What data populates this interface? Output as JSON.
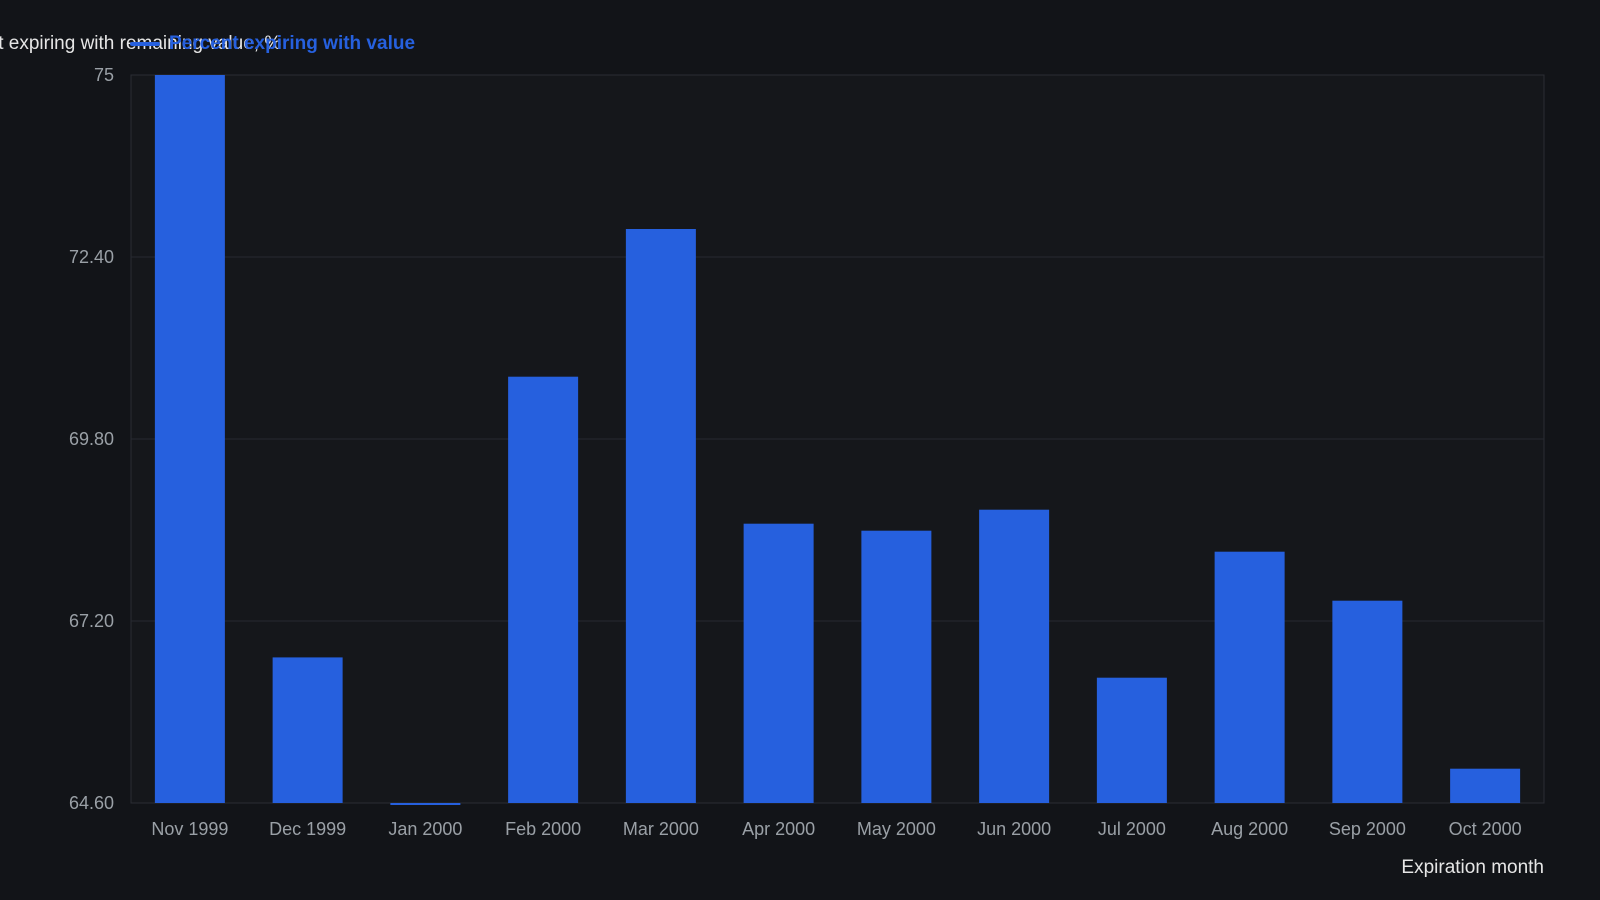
{
  "chart_data": {
    "type": "bar",
    "ylabel": "Percent expiring with remaining value, %",
    "xlabel": "Expiration month",
    "ylim": [
      64.6,
      75
    ],
    "yticks": [
      "64.60",
      "67.20",
      "69.80",
      "72.40",
      "75"
    ],
    "grid": true,
    "legend_position": "top-left",
    "categories": [
      "Nov 1999",
      "Dec 1999",
      "Jan 2000",
      "Feb 2000",
      "Mar 2000",
      "Apr 2000",
      "May 2000",
      "Jun 2000",
      "Jul 2000",
      "Aug 2000",
      "Sep 2000",
      "Oct 2000"
    ],
    "series": [
      {
        "name": "Percent expiring with value",
        "color": "#2660de",
        "values": [
          75.0,
          66.68,
          64.57,
          70.69,
          72.8,
          68.59,
          68.49,
          68.79,
          66.39,
          68.19,
          67.49,
          65.09
        ]
      }
    ]
  }
}
